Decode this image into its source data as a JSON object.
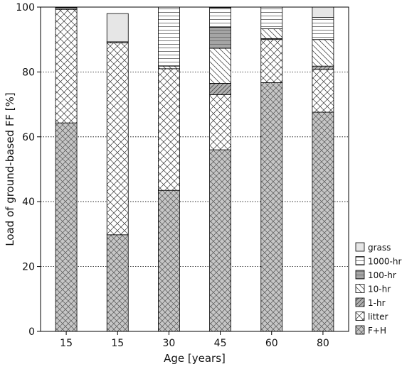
{
  "chart_data": {
    "type": "bar",
    "stacked": true,
    "xlabel": "Age [years]",
    "ylabel": "Load of ground-based FF [%]",
    "ylim": [
      0,
      100
    ],
    "yticks": [
      0,
      20,
      40,
      60,
      80,
      100
    ],
    "grid": "horizontal dotted",
    "legend_position": "bottom-right",
    "categories": [
      "15",
      "15",
      "30",
      "45",
      "60",
      "80"
    ],
    "series": [
      {
        "name": "F+H",
        "pattern": "fh",
        "values": [
          64.3,
          29.8,
          43.5,
          56.0,
          76.7,
          67.6
        ]
      },
      {
        "name": "litter",
        "pattern": "litter",
        "values": [
          35.0,
          59.2,
          37.5,
          17.0,
          13.3,
          13.2
        ]
      },
      {
        "name": "1-hr",
        "pattern": "onehr",
        "values": [
          0.0,
          0.0,
          0.0,
          3.5,
          0.3,
          1.0
        ]
      },
      {
        "name": "10-hr",
        "pattern": "tenhr",
        "values": [
          0.0,
          0.3,
          0.8,
          10.8,
          3.0,
          8.2
        ]
      },
      {
        "name": "100-hr",
        "pattern": "hundredhr",
        "values": [
          0.0,
          0.0,
          0.0,
          6.5,
          0.0,
          0.0
        ]
      },
      {
        "name": "1000-hr",
        "pattern": "thousandhr",
        "values": [
          0.5,
          0.0,
          18.2,
          6.0,
          6.7,
          6.8
        ]
      },
      {
        "name": "grass",
        "pattern": "grass",
        "values": [
          0.2,
          8.7,
          0.0,
          0.2,
          0.0,
          3.2
        ]
      }
    ]
  }
}
